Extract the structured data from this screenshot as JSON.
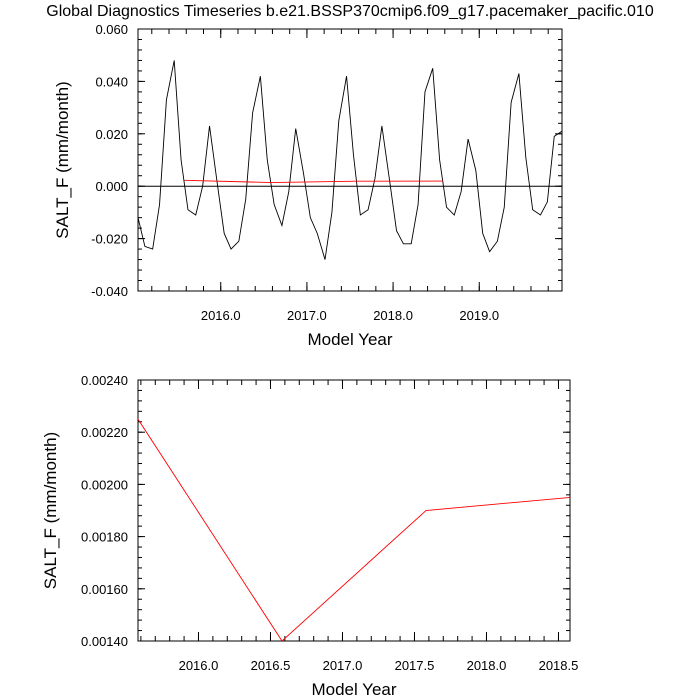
{
  "page_title": "Global Diagnostics Timeseries b.e21.BSSP370cmip6.f09_g17.pacemaker_pacific.010",
  "chart_data": [
    {
      "type": "line",
      "xlabel": "Model Year",
      "ylabel": "SALT_F (mm/month)",
      "xlim": [
        2015.04,
        2019.96
      ],
      "ylim": [
        -0.04,
        0.06
      ],
      "x_ticks": [
        2016.0,
        2017.0,
        2018.0,
        2019.0
      ],
      "x_tick_labels": [
        "2016.0",
        "2017.0",
        "2018.0",
        "2019.0"
      ],
      "y_ticks": [
        -0.04,
        -0.02,
        0.0,
        0.02,
        0.04,
        0.06
      ],
      "y_tick_labels": [
        "-0.040",
        "-0.020",
        "0.000",
        "0.020",
        "0.040",
        "0.060"
      ],
      "zero_line": true,
      "grid": false,
      "series": [
        {
          "color": "#000000",
          "x": [
            2015.04,
            2015.12,
            2015.21,
            2015.29,
            2015.37,
            2015.46,
            2015.54,
            2015.62,
            2015.71,
            2015.79,
            2015.87,
            2015.96,
            2016.04,
            2016.12,
            2016.21,
            2016.29,
            2016.37,
            2016.46,
            2016.54,
            2016.62,
            2016.71,
            2016.79,
            2016.87,
            2016.96,
            2017.04,
            2017.12,
            2017.21,
            2017.29,
            2017.37,
            2017.46,
            2017.54,
            2017.62,
            2017.71,
            2017.79,
            2017.87,
            2017.96,
            2018.04,
            2018.12,
            2018.21,
            2018.29,
            2018.37,
            2018.46,
            2018.54,
            2018.62,
            2018.71,
            2018.79,
            2018.87,
            2018.96,
            2019.04,
            2019.12,
            2019.21,
            2019.29,
            2019.37,
            2019.46,
            2019.54,
            2019.62,
            2019.71,
            2019.79,
            2019.87,
            2019.96
          ],
          "values": [
            -0.012,
            -0.023,
            -0.024,
            -0.007,
            0.033,
            0.048,
            0.01,
            -0.009,
            -0.011,
            0.0,
            0.023,
            0.001,
            -0.018,
            -0.024,
            -0.021,
            -0.005,
            0.028,
            0.042,
            0.01,
            -0.007,
            -0.015,
            -0.002,
            0.022,
            0.005,
            -0.012,
            -0.018,
            -0.028,
            -0.01,
            0.025,
            0.042,
            0.012,
            -0.011,
            -0.009,
            0.003,
            0.023,
            0.002,
            -0.017,
            -0.022,
            -0.022,
            -0.007,
            0.036,
            0.045,
            0.01,
            -0.008,
            -0.011,
            -0.002,
            0.018,
            0.006,
            -0.018,
            -0.025,
            -0.021,
            -0.008,
            0.032,
            0.043,
            0.011,
            -0.009,
            -0.011,
            -0.006,
            0.019,
            0.021
          ]
        },
        {
          "color": "#ff0000",
          "x": [
            2015.58,
            2016.58,
            2017.58,
            2018.58
          ],
          "values": [
            0.00225,
            0.0014,
            0.0019,
            0.00195
          ]
        }
      ]
    },
    {
      "type": "line",
      "xlabel": "Model Year",
      "ylabel": "SALT_F (mm/month)",
      "xlim": [
        2015.58,
        2018.58
      ],
      "ylim": [
        0.0014,
        0.0024
      ],
      "x_ticks": [
        2016.0,
        2016.5,
        2017.0,
        2017.5,
        2018.0,
        2018.5
      ],
      "x_tick_labels": [
        "2016.0",
        "2016.5",
        "2017.0",
        "2017.5",
        "2018.0",
        "2018.5"
      ],
      "y_ticks": [
        0.0014,
        0.0016,
        0.0018,
        0.002,
        0.0022,
        0.0024
      ],
      "y_tick_labels": [
        "0.00140",
        "0.00160",
        "0.00180",
        "0.00200",
        "0.00220",
        "0.00240"
      ],
      "grid": false,
      "series": [
        {
          "color": "#ff0000",
          "x": [
            2015.58,
            2016.58,
            2017.58,
            2018.58
          ],
          "values": [
            0.00225,
            0.0014,
            0.0019,
            0.00195
          ]
        }
      ]
    }
  ]
}
